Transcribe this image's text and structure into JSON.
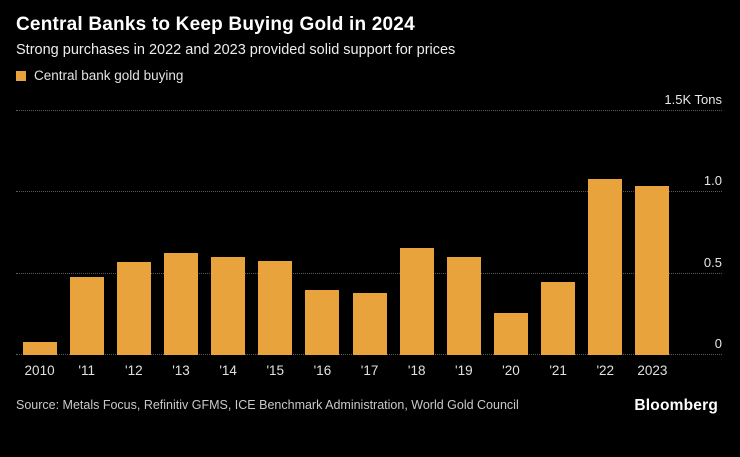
{
  "header": {
    "title": "Central Banks to Keep Buying Gold in 2024",
    "subtitle": "Strong purchases in 2022 and 2023 provided solid support for prices"
  },
  "legend": {
    "label": "Central bank gold buying"
  },
  "chart_data": {
    "type": "bar",
    "title": "Central Banks to Keep Buying Gold in 2024",
    "subtitle": "Strong purchases in 2022 and 2023 provided solid support for prices",
    "series_name": "Central bank gold buying",
    "categories": [
      "2010",
      "'11",
      "'12",
      "'13",
      "'14",
      "'15",
      "'16",
      "'17",
      "'18",
      "'19",
      "'20",
      "'21",
      "'22",
      "2023"
    ],
    "values": [
      0.08,
      0.48,
      0.57,
      0.63,
      0.6,
      0.58,
      0.4,
      0.38,
      0.66,
      0.6,
      0.26,
      0.45,
      1.08,
      1.04
    ],
    "unit": "K Tons",
    "ylim": [
      0,
      1.5
    ],
    "yticks": [
      {
        "value": 0,
        "label": "0"
      },
      {
        "value": 0.5,
        "label": "0.5"
      },
      {
        "value": 1.0,
        "label": "1.0"
      },
      {
        "value": 1.5,
        "label": "1.5K Tons"
      }
    ],
    "grid": "horizontal-dotted",
    "legend_position": "top-left",
    "bar_color": "#E8A33D"
  },
  "footer": {
    "source": "Source: Metals Focus, Refinitiv GFMS, ICE Benchmark Administration, World Gold Council",
    "brand": "Bloomberg"
  },
  "colors": {
    "background": "#000000",
    "accent": "#E8A33D",
    "text": "#FFFFFF",
    "gridline": "#5a5a5a"
  }
}
